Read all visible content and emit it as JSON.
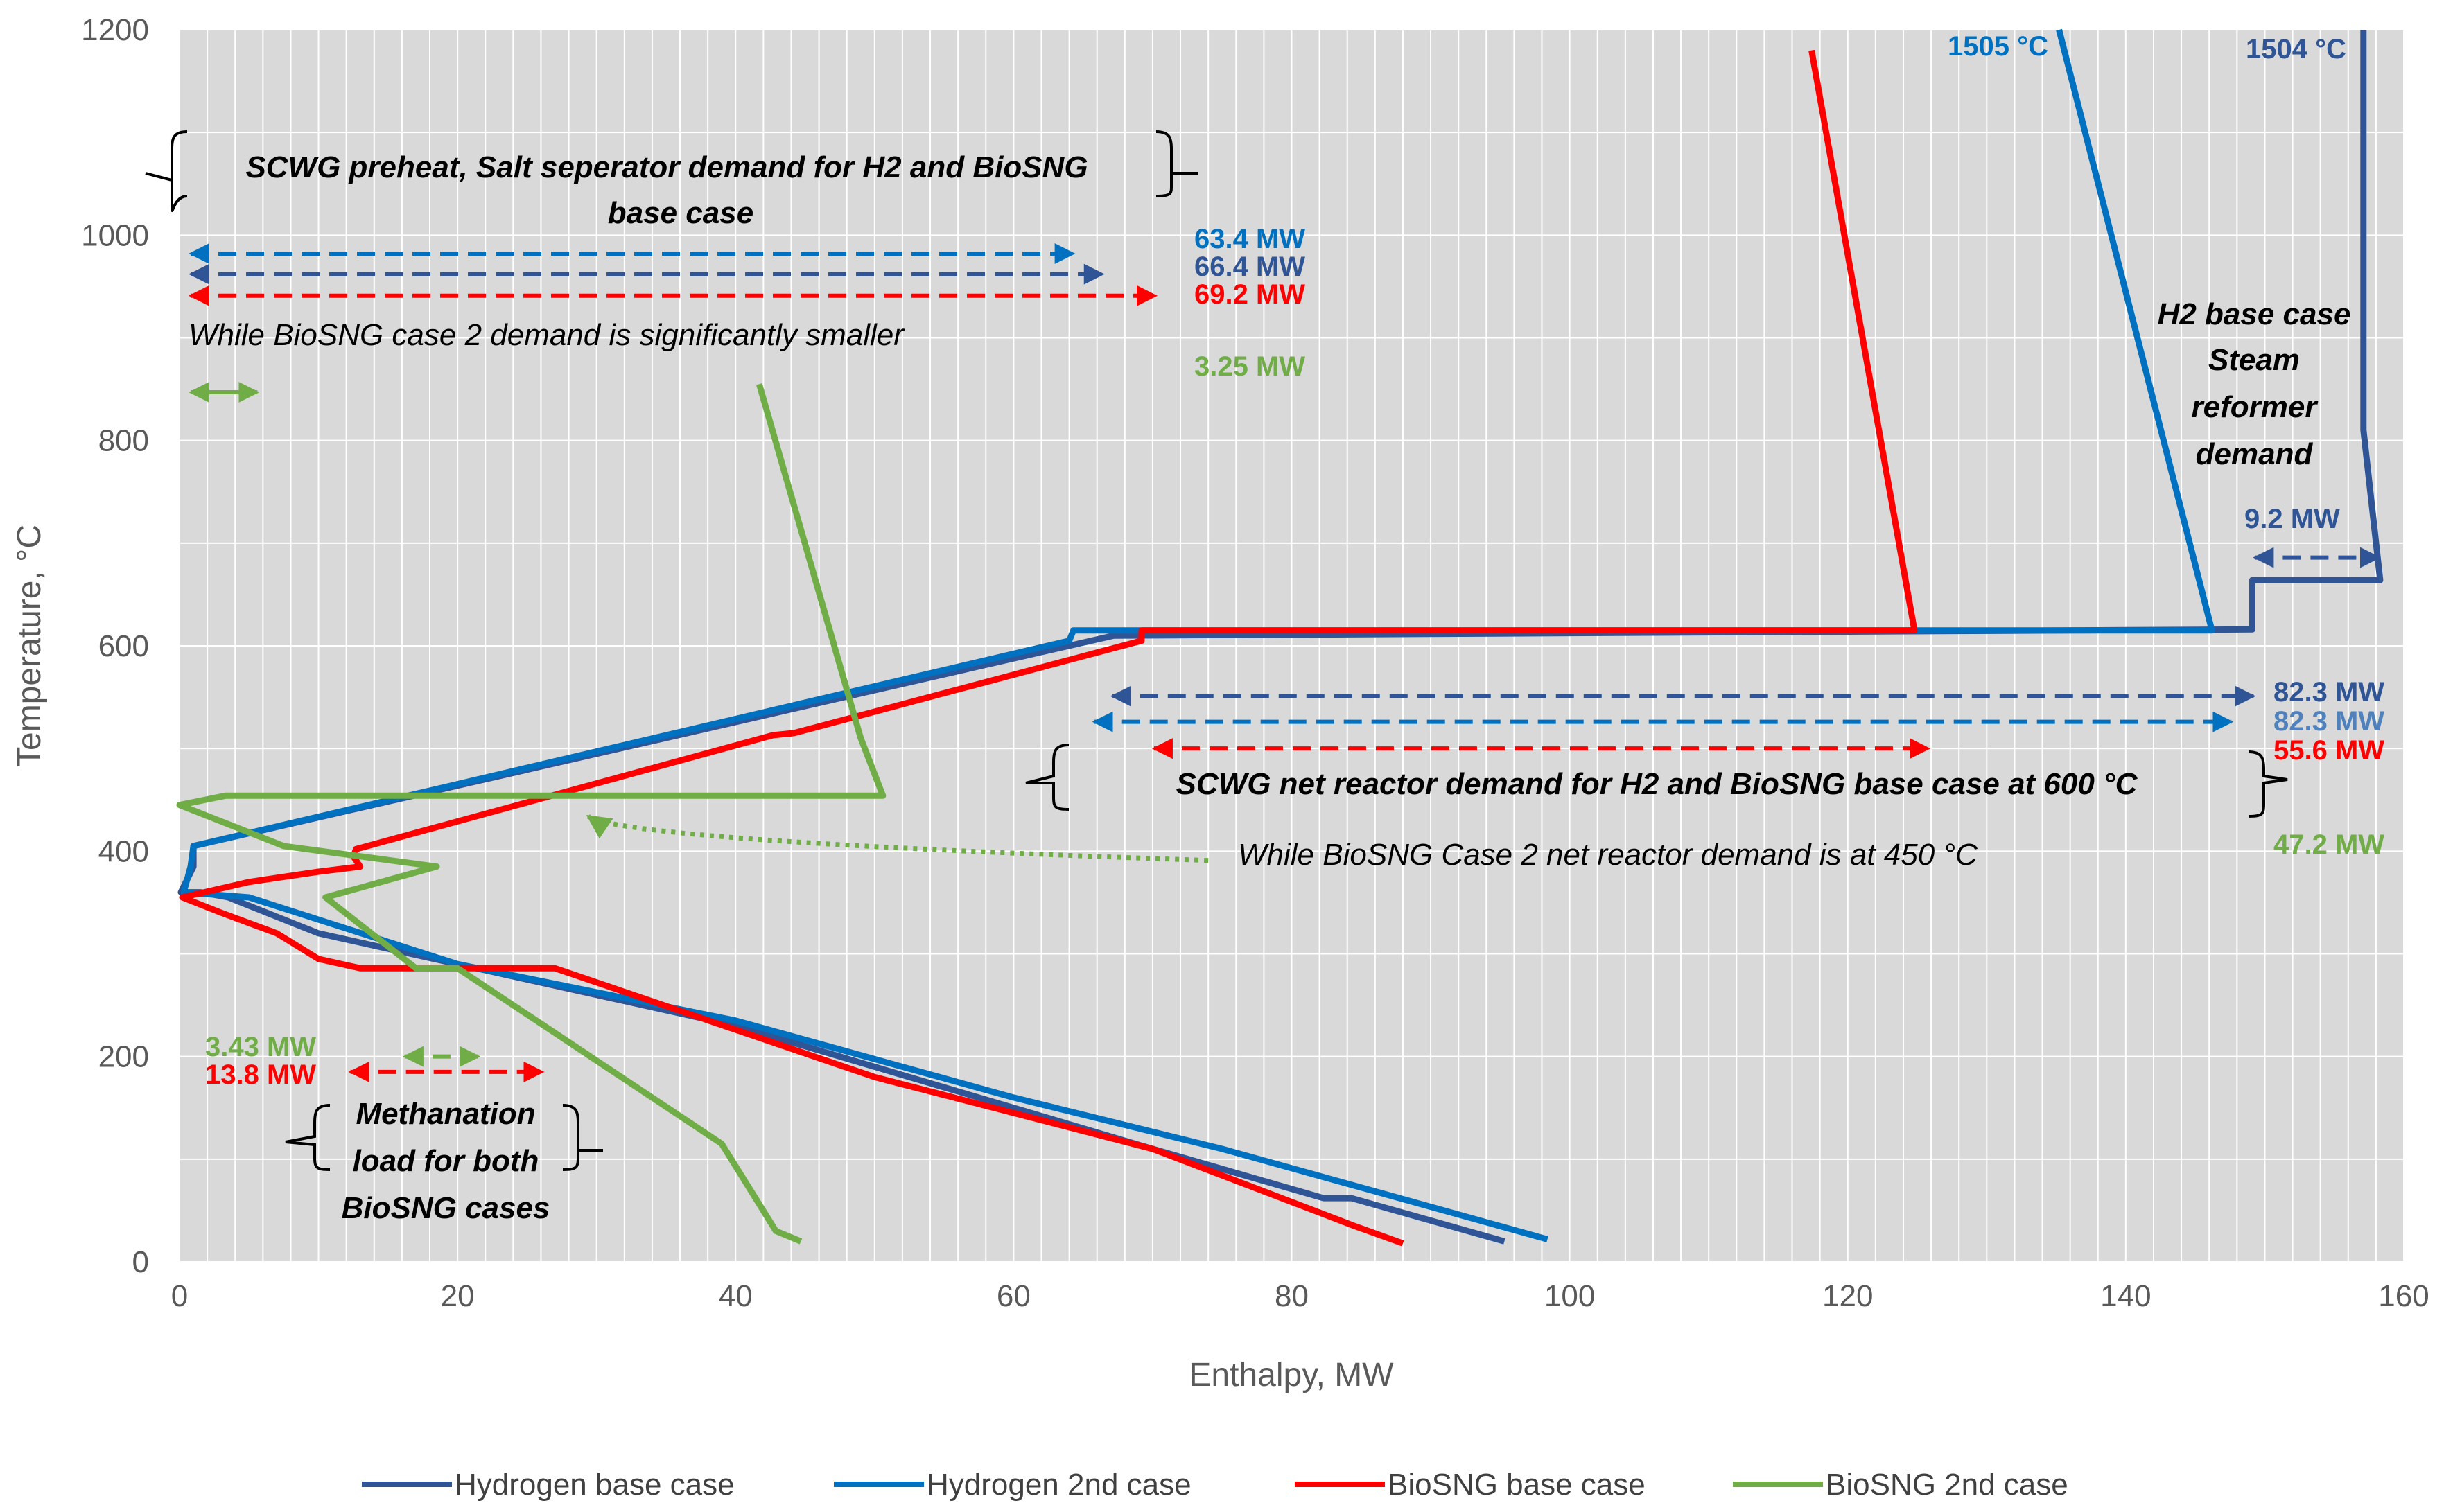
{
  "colors": {
    "plot_bg": "#d9d9d9",
    "grid": "#ffffff",
    "hydrogen_base": "#2f5597",
    "hydrogen_2nd": "#0070c0",
    "biosng_base": "#ff0000",
    "biosng_2nd": "#70ad47",
    "tick_text": "#595959"
  },
  "chart_data": {
    "type": "line",
    "xlabel": "Enthalpy, MW",
    "ylabel": "Temperature, °C",
    "xlim": [
      0,
      160
    ],
    "ylim": [
      0,
      1200
    ],
    "x_ticks": [
      0,
      20,
      40,
      60,
      80,
      100,
      120,
      140,
      160
    ],
    "y_ticks": [
      0,
      200,
      400,
      600,
      800,
      1000,
      1200
    ],
    "x_tick_labels": [
      "0",
      "20",
      "40",
      "60",
      "80",
      "100",
      "120",
      "140",
      "160"
    ],
    "y_tick_labels": [
      "0",
      "200",
      "400",
      "600",
      "800",
      "1000",
      "1200"
    ],
    "grid": true,
    "legend_position": "bottom",
    "series": [
      {
        "name": "Hydrogen base case",
        "color": "#2f5597",
        "points": [
          [
            95.3,
            20
          ],
          [
            84.3,
            62
          ],
          [
            82.3,
            62
          ],
          [
            70,
            110
          ],
          [
            40,
            230
          ],
          [
            20,
            290
          ],
          [
            10,
            320
          ],
          [
            3.5,
            355
          ],
          [
            1.5,
            360
          ],
          [
            0.1,
            360
          ],
          [
            1,
            385
          ],
          [
            1,
            405
          ],
          [
            67.2,
            610
          ],
          [
            149.1,
            616
          ],
          [
            149.1,
            664
          ],
          [
            158.3,
            664
          ],
          [
            157.1,
            810
          ],
          [
            157.1,
            1200
          ]
        ]
      },
      {
        "name": "Hydrogen 2nd case",
        "color": "#0070c0",
        "points": [
          [
            98.4,
            22
          ],
          [
            75,
            110
          ],
          [
            60,
            160
          ],
          [
            40,
            235
          ],
          [
            20,
            290
          ],
          [
            5,
            355
          ],
          [
            0.3,
            360
          ],
          [
            0.8,
            385
          ],
          [
            1,
            405
          ],
          [
            64,
            605
          ],
          [
            64.3,
            615
          ],
          [
            146.2,
            615
          ],
          [
            135.2,
            1200
          ]
        ]
      },
      {
        "name": "BioSNG base case",
        "color": "#ff0000",
        "points": [
          [
            88,
            18
          ],
          [
            84.5,
            35
          ],
          [
            70,
            110
          ],
          [
            50,
            180
          ],
          [
            27,
            286
          ],
          [
            13,
            286
          ],
          [
            10,
            295
          ],
          [
            7,
            320
          ],
          [
            3,
            340
          ],
          [
            0.2,
            355
          ],
          [
            5,
            370
          ],
          [
            10,
            380
          ],
          [
            13,
            385
          ],
          [
            12.5,
            395
          ],
          [
            12.7,
            402
          ],
          [
            42.7,
            513
          ],
          [
            44.2,
            515
          ],
          [
            69.2,
            605
          ],
          [
            69.2,
            615
          ],
          [
            124.8,
            615
          ],
          [
            117.4,
            1180
          ]
        ]
      },
      {
        "name": "BioSNG 2nd case",
        "color": "#70ad47",
        "points": [
          [
            44.7,
            20
          ],
          [
            42.9,
            30
          ],
          [
            39,
            115
          ],
          [
            20,
            286
          ],
          [
            17,
            286
          ],
          [
            10.5,
            355
          ],
          [
            18.5,
            385
          ],
          [
            7.5,
            405
          ],
          [
            0,
            445
          ],
          [
            3.3,
            454
          ],
          [
            50.6,
            454
          ],
          [
            49,
            510
          ],
          [
            41.7,
            855
          ]
        ]
      }
    ],
    "arrows": [
      {
        "color": "#0070c0",
        "from": [
          0.8,
          982
        ],
        "to": [
          64.3,
          982
        ],
        "style": "dashed",
        "heads": "both"
      },
      {
        "color": "#2f5597",
        "from": [
          0.8,
          962
        ],
        "to": [
          66.4,
          962
        ],
        "style": "dashed",
        "heads": "both"
      },
      {
        "color": "#ff0000",
        "from": [
          0.8,
          941
        ],
        "to": [
          70.2,
          941
        ],
        "style": "dashed",
        "heads": "both"
      },
      {
        "color": "#70ad47",
        "from": [
          0.8,
          847
        ],
        "to": [
          5.6,
          847
        ],
        "style": "solid",
        "heads": "both"
      },
      {
        "color": "#2f5597",
        "from": [
          149.3,
          686
        ],
        "to": [
          158.2,
          686
        ],
        "style": "dashed",
        "heads": "both"
      },
      {
        "color": "#2f5597",
        "from": [
          67.1,
          551
        ],
        "to": [
          149.2,
          551
        ],
        "style": "dashed",
        "heads": "both"
      },
      {
        "color": "#0070c0",
        "from": [
          65.8,
          526
        ],
        "to": [
          147.6,
          526
        ],
        "style": "dashed",
        "heads": "both"
      },
      {
        "color": "#ff0000",
        "from": [
          70.1,
          500
        ],
        "to": [
          125.8,
          500
        ],
        "style": "dashed",
        "heads": "both"
      },
      {
        "color": "#ff0000",
        "from": [
          12.3,
          185
        ],
        "to": [
          26.1,
          185
        ],
        "style": "dashed",
        "heads": "both"
      },
      {
        "color": "#70ad47",
        "from": [
          16.2,
          200
        ],
        "to": [
          21.5,
          200
        ],
        "style": "dashed",
        "heads": "both"
      },
      {
        "color": "#70ad47",
        "from": [
          74,
          391
        ],
        "to": [
          29.4,
          434
        ],
        "style": "dotted",
        "heads": "end",
        "curve_to": [
          32,
          410
        ]
      }
    ],
    "mw_labels": [
      {
        "text": "63.4 MW",
        "color": "#0070c0"
      },
      {
        "text": "66.4 MW",
        "color": "#2f5597"
      },
      {
        "text": "69.2 MW",
        "color": "#ff0000"
      },
      {
        "text": "3.25 MW",
        "color": "#70ad47"
      },
      {
        "text": "9.2 MW",
        "color": "#2f5597"
      },
      {
        "text": "82.3 MW",
        "color": "#2f5597"
      },
      {
        "text": "82.3 MW",
        "color": "#4f81bd"
      },
      {
        "text": "55.6 MW",
        "color": "#ff0000"
      },
      {
        "text": "47.2 MW",
        "color": "#70ad47"
      },
      {
        "text": "3.43 MW",
        "color": "#70ad47"
      },
      {
        "text": "13.8 MW",
        "color": "#ff0000"
      },
      {
        "text": "1505 °C",
        "color": "#0070c0"
      },
      {
        "text": "1504 °C",
        "color": "#2f5597"
      }
    ],
    "annotations": {
      "scwg_preheat_line1": "SCWG preheat, Salt seperator demand for H2 and BioSNG",
      "scwg_preheat_line2": "base case",
      "biosng_case2_demand": "While BioSNG case 2 demand is significantly smaller",
      "h2_steam_line1": "H2 base case",
      "h2_steam_line2": "Steam",
      "h2_steam_line3": "reformer",
      "h2_steam_line4": "demand",
      "scwg_net_reactor": "SCWG net reactor demand  for H2 and BioSNG base case at 600 °C",
      "biosng_case2_reactor": "While BioSNG Case 2 net reactor demand is at 450 °C",
      "methanation_line1": "Methanation",
      "methanation_line2": "load for both",
      "methanation_line3": "BioSNG cases"
    }
  }
}
